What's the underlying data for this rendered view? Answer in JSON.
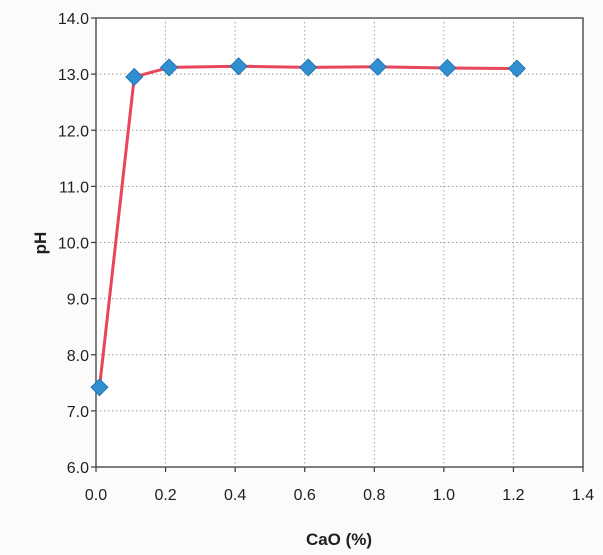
{
  "chart_data": {
    "type": "line",
    "title": "",
    "xlabel": "CaO (%)",
    "ylabel": "pH",
    "xlim": [
      0.0,
      1.4
    ],
    "ylim": [
      6.0,
      14.0
    ],
    "x_ticks": [
      0.0,
      0.2,
      0.4,
      0.6,
      0.8,
      1.0,
      1.2,
      1.4
    ],
    "y_ticks": [
      6.0,
      7.0,
      8.0,
      9.0,
      10.0,
      11.0,
      12.0,
      13.0,
      14.0
    ],
    "x_tick_labels": [
      "0.0",
      "0.2",
      "0.4",
      "0.6",
      "0.8",
      "1.0",
      "1.2",
      "1.4"
    ],
    "y_tick_labels": [
      "6.0",
      "7.0",
      "8.0",
      "9.0",
      "10.0",
      "11.0",
      "12.0",
      "13.0",
      "14.0"
    ],
    "grid": true,
    "legend": "none",
    "series": [
      {
        "x": [
          0.01,
          0.11,
          0.21,
          0.41,
          0.61,
          0.81,
          1.01,
          1.21
        ],
        "y": [
          7.42,
          12.95,
          13.12,
          13.14,
          13.12,
          13.13,
          13.11,
          13.1
        ],
        "line_color": "#e8465a",
        "marker": "diamond",
        "marker_color": "#2f8fd0"
      }
    ]
  }
}
